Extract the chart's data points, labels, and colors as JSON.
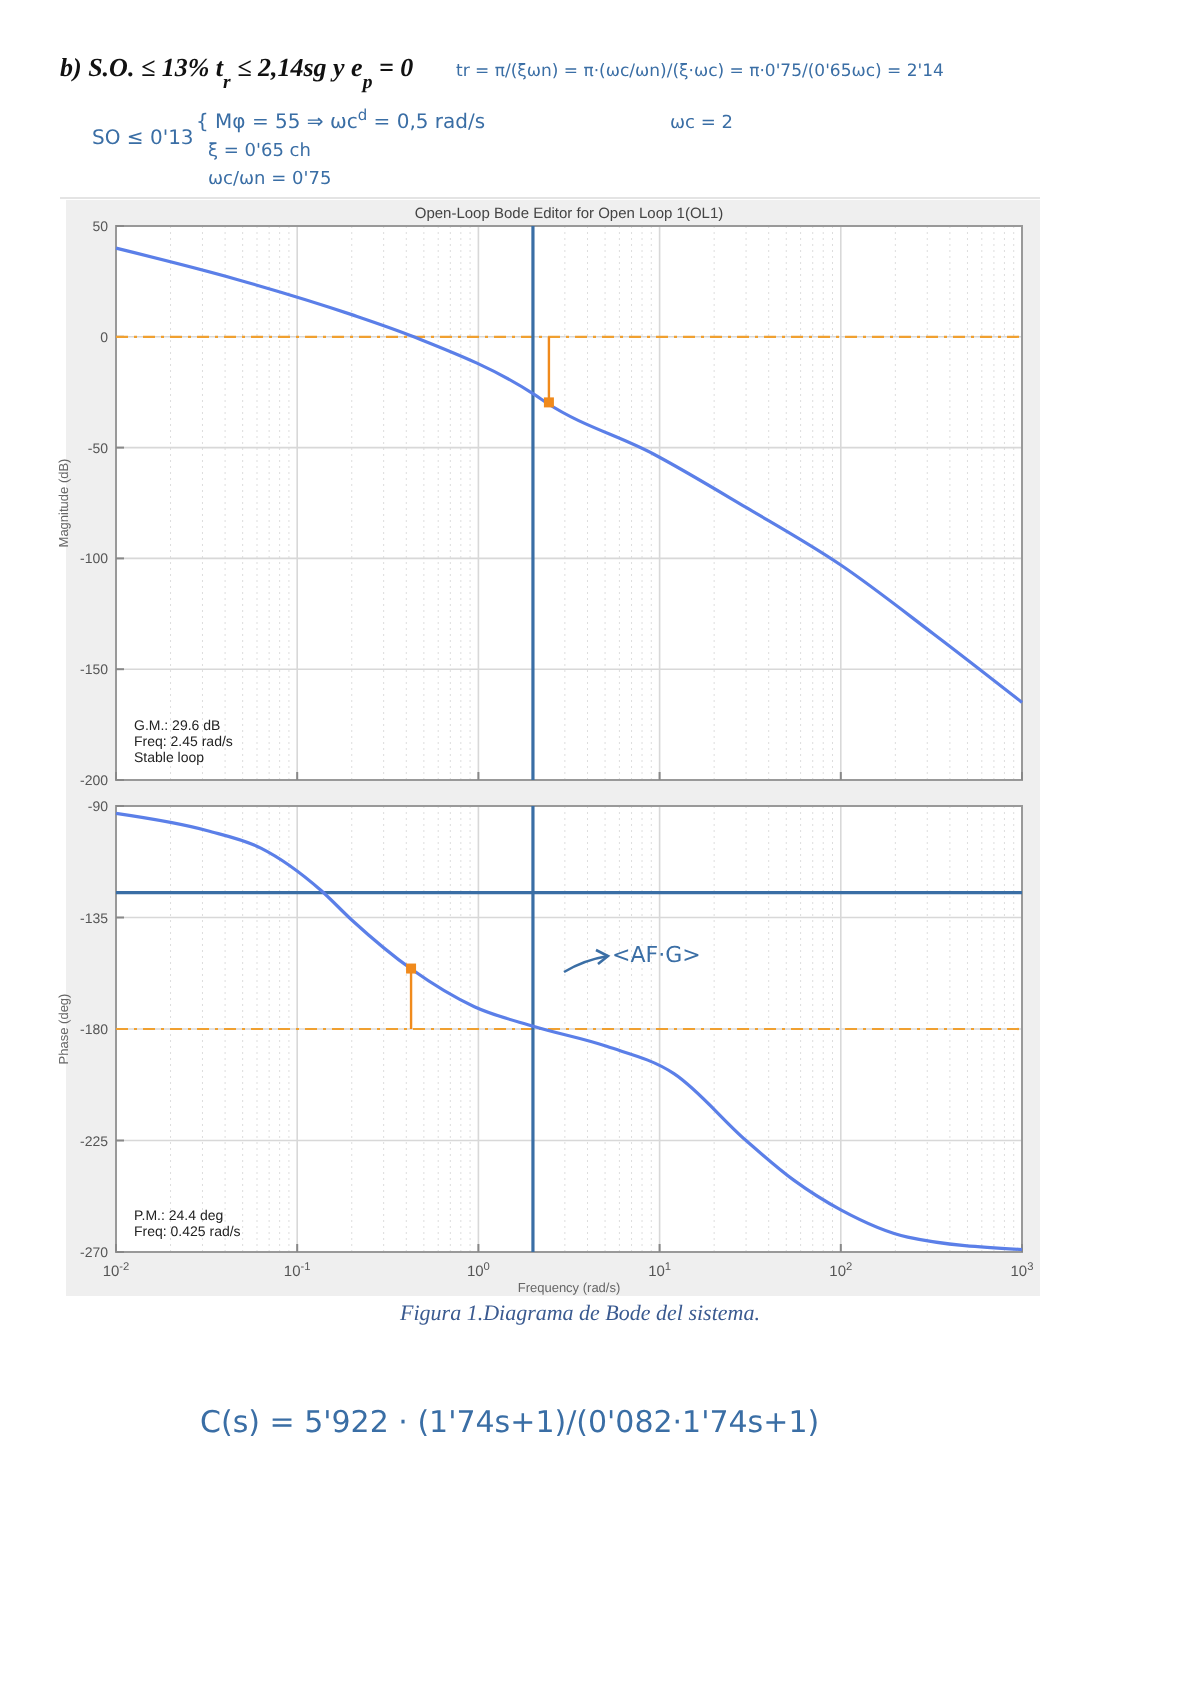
{
  "chart_data": [
    {
      "type": "line",
      "title": "Open-Loop Bode Editor for Open Loop 1(OL1)",
      "ylabel": "Magnitude (dB)",
      "log": "x",
      "grid": true,
      "tick_labels": "y",
      "xlim": [
        0.01,
        1000
      ],
      "xticks": [
        0.01,
        0.1,
        1,
        10,
        100,
        1000
      ],
      "ylim": [
        -200,
        50
      ],
      "yticks": [
        -200,
        -150,
        -100,
        -50,
        0,
        50
      ],
      "series": [
        {
          "color": "#5b7fe8",
          "x": [
            0.01,
            0.046,
            0.2,
            0.44,
            2.03,
            2.4,
            9.3,
            30,
            100,
            324,
            1000
          ],
          "values": [
            40,
            26,
            10,
            0,
            -26,
            -30,
            -53,
            -77,
            -103,
            -134,
            -165
          ]
        },
        {
          "type": "scatter",
          "marker": "square",
          "color": "#f08a1c",
          "x": [
            2.45
          ],
          "values": [
            -29.6
          ],
          "errors": [
            [
              -29.6,
              0
            ]
          ]
        }
      ],
      "ref_lines": [
        {
          "axis": "y",
          "value": 0,
          "color": "#f0a030",
          "line_style": "dashed"
        },
        {
          "axis": "x",
          "value": 2,
          "color": "#3a6ea5",
          "line_style": "solid"
        }
      ],
      "annotations": [
        "b) S.O. ≤ 13% t$_{r}$ ≤ 2,14sg y e$_{p}$ = 0",
        "tr = π/(ξωn) = π·(ωc/ωn)/(ξ·ωc) = π·0'75/(0'65ωc) = 2'14",
        "ωc = 2",
        "SO ≤ 0'13",
        "{ Mφ = 55 ⇒ ωc$^{d}$ = 0,5 rad/s",
        "ξ = 0'65 ch",
        "ωc/ωn = 0'75",
        "G.M.: 29.6 dB",
        "Freq: 2.45 rad/s",
        "Stable loop"
      ]
    },
    {
      "type": "line",
      "ylabel": "Phase (deg)",
      "xlabel": "Frequency (rad/s)",
      "log": "x",
      "grid": true,
      "xlim": [
        0.01,
        1000
      ],
      "xticks": [
        {
          "value": 0.01,
          "label": "10$^{-2}$"
        },
        {
          "value": 0.1,
          "label": "10$^{-1}$"
        },
        {
          "value": 1,
          "label": "10$^{0}$"
        },
        {
          "value": 10,
          "label": "10$^{1}$"
        },
        {
          "value": 100,
          "label": "10$^{2}$"
        },
        {
          "value": 1000,
          "label": "10$^{3}$"
        }
      ],
      "ylim": [
        -270,
        -90
      ],
      "yticks": [
        -270,
        -225,
        -180,
        -135,
        -90
      ],
      "series": [
        {
          "color": "#5b7fe8",
          "x": [
            0.01,
            0.032,
            0.063,
            0.135,
            0.2,
            0.43,
            0.95,
            2.03,
            5.1,
            12,
            30,
            55,
            100,
            234,
            1000
          ],
          "values": [
            -93,
            -100,
            -107,
            -124,
            -136,
            -156,
            -171,
            -179,
            -187,
            -198,
            -225,
            -241,
            -253,
            -264,
            -269
          ]
        },
        {
          "type": "scatter",
          "marker": "square",
          "color": "#f08a1c",
          "x": [
            0.425
          ],
          "values": [
            -155.6
          ],
          "errors": [
            [
              -180,
              -155.6
            ]
          ]
        }
      ],
      "ref_lines": [
        {
          "axis": "y",
          "value": -180,
          "color": "#f0a030",
          "line_style": "dashed"
        },
        {
          "axis": "y",
          "value": -125,
          "color": "#3a6ea5",
          "line_style": "solid"
        },
        {
          "axis": "x",
          "value": 2,
          "color": "#3a6ea5",
          "line_style": "solid"
        }
      ],
      "annotations": [
        "<AF·G>",
        "P.M.: 24.4 deg",
        "Freq: 0.425 rad/s",
        "Figura 1.Diagrama de Bode del sistema.",
        "C(s) = 5'922 · (1'74s+1)/(0'082·1'74s+1)"
      ]
    }
  ]
}
